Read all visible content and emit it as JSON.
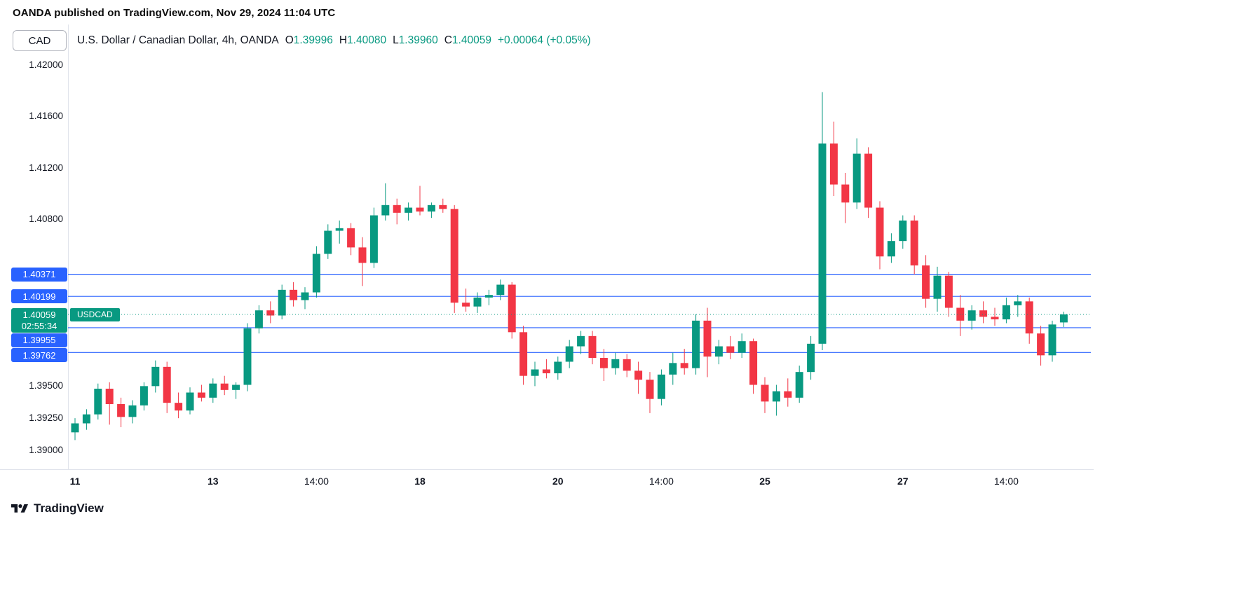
{
  "header": {
    "attribution": "OANDA published on TradingView.com, Nov 29, 2024 11:04 UTC"
  },
  "toolbar": {
    "currency_label": "CAD"
  },
  "legend": {
    "title": "U.S. Dollar / Canadian Dollar, 4h, OANDA",
    "ohlc": [
      {
        "label": "O",
        "value": "1.39996"
      },
      {
        "label": "H",
        "value": "1.40080"
      },
      {
        "label": "L",
        "value": "1.39960"
      },
      {
        "label": "C",
        "value": "1.40059"
      }
    ],
    "change": "+0.00064 (+0.05%)"
  },
  "footer": {
    "brand": "TradingView"
  },
  "chart_data": {
    "type": "candlestick",
    "symbol": "USDCAD",
    "title": "U.S. Dollar / Canadian Dollar",
    "interval": "4h",
    "exchange": "OANDA",
    "up_color": "#089981",
    "down_color": "#f23645",
    "level_color": "#2962ff",
    "current": {
      "open": 1.39996,
      "high": 1.4008,
      "low": 1.3996,
      "close": 1.40059,
      "change": "+0.00064 (+0.05%)"
    },
    "price_axis": {
      "min": 1.39,
      "max": 1.42,
      "ticks": [
        "1.42000",
        "1.41600",
        "1.41200",
        "1.40800",
        "1.39500",
        "1.39250",
        "1.39000"
      ]
    },
    "x_ticks": [
      {
        "label": "11",
        "index": 0,
        "type": "day"
      },
      {
        "label": "13",
        "index": 12,
        "type": "day"
      },
      {
        "label": "14:00",
        "index": 21,
        "type": "time"
      },
      {
        "label": "18",
        "index": 30,
        "type": "day"
      },
      {
        "label": "20",
        "index": 42,
        "type": "day"
      },
      {
        "label": "14:00",
        "index": 51,
        "type": "time"
      },
      {
        "label": "25",
        "index": 60,
        "type": "day"
      },
      {
        "label": "27",
        "index": 72,
        "type": "day"
      },
      {
        "label": "14:00",
        "index": 81,
        "type": "time"
      }
    ],
    "levels": [
      {
        "price": 1.40371,
        "label": "1.40371",
        "label_dy": 0
      },
      {
        "price": 1.40199,
        "label": "1.40199",
        "label_dy": 0
      },
      {
        "price": 1.39955,
        "label": "1.39955",
        "label_dy": 18
      },
      {
        "price": 1.39762,
        "label": "1.39762",
        "label_dy": 4
      }
    ],
    "price_line": {
      "price": 1.40059,
      "label": "1.40059",
      "countdown": "02:55:34",
      "symbol_label": "USDCAD"
    },
    "candles": [
      [
        1.3914,
        1.3925,
        1.3908,
        1.3921
      ],
      [
        1.3921,
        1.3932,
        1.3916,
        1.3928
      ],
      [
        1.3928,
        1.3952,
        1.3924,
        1.3948
      ],
      [
        1.3948,
        1.3953,
        1.392,
        1.3936
      ],
      [
        1.3936,
        1.3941,
        1.3918,
        1.3926
      ],
      [
        1.3926,
        1.3939,
        1.3921,
        1.3935
      ],
      [
        1.3935,
        1.3953,
        1.3931,
        1.395
      ],
      [
        1.395,
        1.397,
        1.3945,
        1.3965
      ],
      [
        1.3965,
        1.3969,
        1.3929,
        1.3937
      ],
      [
        1.3937,
        1.3945,
        1.3925,
        1.3931
      ],
      [
        1.3931,
        1.3949,
        1.3928,
        1.3945
      ],
      [
        1.3945,
        1.3951,
        1.3938,
        1.3941
      ],
      [
        1.3941,
        1.3956,
        1.3937,
        1.3952
      ],
      [
        1.3952,
        1.3958,
        1.3943,
        1.3947
      ],
      [
        1.3947,
        1.3953,
        1.394,
        1.3951
      ],
      [
        1.3951,
        1.3999,
        1.3946,
        1.3995
      ],
      [
        1.3995,
        1.4013,
        1.3991,
        1.4009
      ],
      [
        1.4009,
        1.4016,
        1.3999,
        1.4005
      ],
      [
        1.4005,
        1.4029,
        1.4002,
        1.4025
      ],
      [
        1.4025,
        1.4031,
        1.4012,
        1.4017
      ],
      [
        1.4017,
        1.4027,
        1.401,
        1.4023
      ],
      [
        1.4023,
        1.4059,
        1.4019,
        1.4053
      ],
      [
        1.4053,
        1.4076,
        1.4049,
        1.4071
      ],
      [
        1.4071,
        1.4079,
        1.4061,
        1.4073
      ],
      [
        1.4073,
        1.4077,
        1.4052,
        1.4058
      ],
      [
        1.4058,
        1.4066,
        1.4028,
        1.4046
      ],
      [
        1.4046,
        1.4089,
        1.4042,
        1.4083
      ],
      [
        1.4083,
        1.4108,
        1.4079,
        1.4091
      ],
      [
        1.4091,
        1.4096,
        1.4076,
        1.4085
      ],
      [
        1.4085,
        1.4093,
        1.4079,
        1.4089
      ],
      [
        1.4089,
        1.4106,
        1.4083,
        1.4086
      ],
      [
        1.4086,
        1.4093,
        1.4081,
        1.4091
      ],
      [
        1.4091,
        1.4096,
        1.4085,
        1.4088
      ],
      [
        1.4088,
        1.4091,
        1.4007,
        1.4015
      ],
      [
        1.4015,
        1.4026,
        1.4008,
        1.4012
      ],
      [
        1.4012,
        1.4023,
        1.4007,
        1.4019
      ],
      [
        1.4019,
        1.4025,
        1.4013,
        1.4021
      ],
      [
        1.4021,
        1.4033,
        1.4017,
        1.4029
      ],
      [
        1.4029,
        1.4031,
        1.3987,
        1.3992
      ],
      [
        1.3992,
        1.3997,
        1.3951,
        1.3958
      ],
      [
        1.3958,
        1.3969,
        1.395,
        1.3963
      ],
      [
        1.3963,
        1.3971,
        1.3956,
        1.396
      ],
      [
        1.396,
        1.3973,
        1.3955,
        1.3969
      ],
      [
        1.3969,
        1.3986,
        1.3964,
        1.3981
      ],
      [
        1.3981,
        1.3993,
        1.3975,
        1.3989
      ],
      [
        1.3989,
        1.3993,
        1.3967,
        1.3972
      ],
      [
        1.3972,
        1.3979,
        1.3954,
        1.3964
      ],
      [
        1.3964,
        1.3976,
        1.3959,
        1.3971
      ],
      [
        1.3971,
        1.3975,
        1.3957,
        1.3962
      ],
      [
        1.3962,
        1.3969,
        1.3944,
        1.3955
      ],
      [
        1.3955,
        1.3961,
        1.3929,
        1.394
      ],
      [
        1.394,
        1.3963,
        1.3935,
        1.3959
      ],
      [
        1.3959,
        1.3976,
        1.3951,
        1.3968
      ],
      [
        1.3968,
        1.3979,
        1.3959,
        1.3964
      ],
      [
        1.3964,
        1.4006,
        1.3959,
        1.4001
      ],
      [
        1.4001,
        1.4011,
        1.3957,
        1.3973
      ],
      [
        1.3973,
        1.3986,
        1.3967,
        1.3981
      ],
      [
        1.3981,
        1.3989,
        1.3971,
        1.3976
      ],
      [
        1.3976,
        1.3991,
        1.3972,
        1.3985
      ],
      [
        1.3985,
        1.3987,
        1.3944,
        1.3951
      ],
      [
        1.3951,
        1.3957,
        1.3929,
        1.3938
      ],
      [
        1.3938,
        1.3951,
        1.3927,
        1.3946
      ],
      [
        1.3946,
        1.3956,
        1.3934,
        1.3941
      ],
      [
        1.3941,
        1.3966,
        1.3937,
        1.3961
      ],
      [
        1.3961,
        1.3989,
        1.3955,
        1.3983
      ],
      [
        1.3983,
        1.4179,
        1.3978,
        1.4139
      ],
      [
        1.4139,
        1.4156,
        1.4098,
        1.4107
      ],
      [
        1.4107,
        1.4116,
        1.4077,
        1.4093
      ],
      [
        1.4093,
        1.4143,
        1.4088,
        1.4131
      ],
      [
        1.4131,
        1.4136,
        1.4081,
        1.4089
      ],
      [
        1.4089,
        1.4094,
        1.4041,
        1.4051
      ],
      [
        1.4051,
        1.4069,
        1.4046,
        1.4063
      ],
      [
        1.4063,
        1.4083,
        1.4057,
        1.4079
      ],
      [
        1.4079,
        1.4083,
        1.4037,
        1.4044
      ],
      [
        1.4044,
        1.4052,
        1.4011,
        1.4018
      ],
      [
        1.4018,
        1.4043,
        1.4008,
        1.4036
      ],
      [
        1.4036,
        1.4039,
        1.4004,
        1.4011
      ],
      [
        1.4011,
        1.4021,
        1.3989,
        1.4001
      ],
      [
        1.4001,
        1.4013,
        1.3994,
        1.4009
      ],
      [
        1.4009,
        1.4016,
        1.3999,
        1.4004
      ],
      [
        1.4004,
        1.4011,
        1.3997,
        1.4002
      ],
      [
        1.4002,
        1.4019,
        1.3999,
        1.4013
      ],
      [
        1.4013,
        1.4021,
        1.4004,
        1.4016
      ],
      [
        1.4016,
        1.4019,
        1.3983,
        1.3991
      ],
      [
        1.3991,
        1.3997,
        1.3966,
        1.3974
      ],
      [
        1.3974,
        1.4001,
        1.3969,
        1.3998
      ],
      [
        1.39996,
        1.4008,
        1.3996,
        1.40059
      ]
    ]
  }
}
